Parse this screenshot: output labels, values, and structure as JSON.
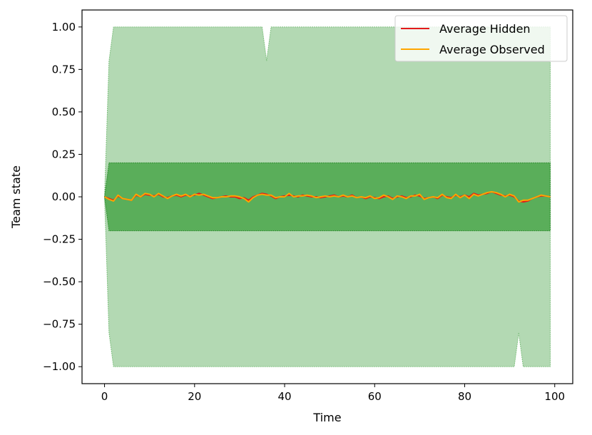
{
  "chart_data": {
    "type": "line",
    "xlabel": "Time",
    "ylabel": "Team state",
    "xlim": [
      -5,
      104
    ],
    "ylim": [
      -1.1,
      1.1
    ],
    "xticks": [
      0,
      20,
      40,
      60,
      80,
      100
    ],
    "yticks": [
      1.0,
      0.75,
      0.5,
      0.25,
      0.0,
      -0.25,
      -0.5,
      -0.75,
      -1.0
    ],
    "ytick_labels": [
      "1.00",
      "0.75",
      "0.50",
      "0.25",
      "0.00",
      "−0.25",
      "−0.50",
      "−0.75",
      "−1.00"
    ],
    "legend_position": "top-right",
    "grid": false,
    "colors": {
      "hidden": "#e31a1c",
      "observed": "#ffa500",
      "outer_band_fill": "#b3d9b3",
      "outer_band_edge": "#7fbf7f",
      "inner_band_fill": "#5aae5a",
      "inner_band_edge": "#2c8c2c"
    },
    "bands": [
      {
        "role": "outer",
        "x": [
          0,
          1,
          2,
          35,
          36,
          37,
          91,
          92,
          93,
          99
        ],
        "upper": [
          0.0,
          0.8,
          1.0,
          1.0,
          0.8,
          1.0,
          1.0,
          1.0,
          1.0,
          1.0
        ],
        "lower": [
          0.0,
          -0.8,
          -1.0,
          -1.0,
          -1.0,
          -1.0,
          -1.0,
          -0.8,
          -1.0,
          -1.0
        ]
      },
      {
        "role": "inner",
        "x": [
          0,
          1,
          99
        ],
        "upper": [
          0.0,
          0.2,
          0.2
        ],
        "lower": [
          0.0,
          -0.2,
          -0.2
        ]
      }
    ],
    "series": [
      {
        "name": "Average Hidden",
        "key": "hidden",
        "x": [
          0,
          1,
          2,
          3,
          4,
          5,
          6,
          7,
          8,
          9,
          10,
          11,
          12,
          13,
          14,
          15,
          16,
          17,
          18,
          19,
          20,
          21,
          22,
          23,
          24,
          25,
          26,
          27,
          28,
          29,
          30,
          31,
          32,
          33,
          34,
          35,
          36,
          37,
          38,
          39,
          40,
          41,
          42,
          43,
          44,
          45,
          46,
          47,
          48,
          49,
          50,
          51,
          52,
          53,
          54,
          55,
          56,
          57,
          58,
          59,
          60,
          61,
          62,
          63,
          64,
          65,
          66,
          67,
          68,
          69,
          70,
          71,
          72,
          73,
          74,
          75,
          76,
          77,
          78,
          79,
          80,
          81,
          82,
          83,
          84,
          85,
          86,
          87,
          88,
          89,
          90,
          91,
          92,
          93,
          94,
          95,
          96,
          97,
          98,
          99
        ],
        "values": [
          0.0,
          -0.01,
          -0.02,
          0.005,
          -0.01,
          -0.015,
          -0.02,
          0.01,
          0.0,
          0.015,
          0.01,
          0.005,
          0.015,
          0.0,
          -0.005,
          0.005,
          0.01,
          0.0,
          0.01,
          0.005,
          0.01,
          0.02,
          0.01,
          0.0,
          -0.01,
          -0.005,
          0.0,
          0.005,
          0.0,
          0.0,
          -0.01,
          -0.005,
          -0.02,
          0.0,
          0.01,
          0.02,
          0.015,
          0.005,
          -0.01,
          0.0,
          0.005,
          0.01,
          0.005,
          0.0,
          0.01,
          0.005,
          0.0,
          0.0,
          -0.005,
          0.0,
          0.005,
          0.01,
          0.0,
          0.005,
          0.0,
          0.01,
          -0.005,
          0.0,
          -0.01,
          0.0,
          -0.005,
          -0.01,
          0.0,
          0.005,
          -0.01,
          0.0,
          0.005,
          -0.005,
          0.0,
          0.01,
          0.005,
          -0.01,
          -0.005,
          0.0,
          -0.01,
          0.01,
          0.0,
          -0.005,
          0.01,
          0.0,
          0.01,
          0.0,
          0.02,
          0.01,
          0.015,
          0.02,
          0.03,
          0.02,
          0.01,
          0.005,
          0.01,
          0.0,
          -0.025,
          -0.03,
          -0.025,
          -0.01,
          0.0,
          0.005,
          0.005,
          0.0
        ]
      },
      {
        "name": "Average Observed",
        "key": "observed",
        "x": [
          0,
          1,
          2,
          3,
          4,
          5,
          6,
          7,
          8,
          9,
          10,
          11,
          12,
          13,
          14,
          15,
          16,
          17,
          18,
          19,
          20,
          21,
          22,
          23,
          24,
          25,
          26,
          27,
          28,
          29,
          30,
          31,
          32,
          33,
          34,
          35,
          36,
          37,
          38,
          39,
          40,
          41,
          42,
          43,
          44,
          45,
          46,
          47,
          48,
          49,
          50,
          51,
          52,
          53,
          54,
          55,
          56,
          57,
          58,
          59,
          60,
          61,
          62,
          63,
          64,
          65,
          66,
          67,
          68,
          69,
          70,
          71,
          72,
          73,
          74,
          75,
          76,
          77,
          78,
          79,
          80,
          81,
          82,
          83,
          84,
          85,
          86,
          87,
          88,
          89,
          90,
          91,
          92,
          93,
          94,
          95,
          96,
          97,
          98,
          99
        ],
        "values": [
          0.0,
          -0.015,
          -0.025,
          0.01,
          -0.01,
          -0.015,
          -0.02,
          0.015,
          0.0,
          0.02,
          0.015,
          0.0,
          0.02,
          0.005,
          -0.01,
          0.005,
          0.015,
          0.005,
          0.015,
          0.0,
          0.015,
          0.01,
          0.015,
          0.005,
          -0.005,
          -0.005,
          0.0,
          0.0,
          0.005,
          0.005,
          0.0,
          -0.01,
          -0.03,
          -0.005,
          0.01,
          0.015,
          0.01,
          0.01,
          -0.005,
          0.0,
          0.0,
          0.02,
          0.0,
          0.005,
          0.005,
          0.01,
          0.005,
          -0.005,
          0.0,
          0.005,
          0.0,
          0.005,
          0.0,
          0.01,
          0.0,
          0.005,
          -0.005,
          0.0,
          -0.005,
          0.005,
          -0.01,
          -0.005,
          0.01,
          0.0,
          -0.015,
          0.005,
          0.0,
          -0.01,
          0.005,
          0.005,
          0.015,
          -0.015,
          -0.005,
          0.0,
          -0.005,
          0.015,
          -0.005,
          -0.01,
          0.015,
          -0.005,
          0.01,
          -0.01,
          0.015,
          0.005,
          0.015,
          0.025,
          0.03,
          0.025,
          0.015,
          0.0,
          0.015,
          0.005,
          -0.03,
          -0.02,
          -0.02,
          -0.01,
          0.0,
          0.01,
          0.005,
          0.0
        ]
      }
    ]
  }
}
